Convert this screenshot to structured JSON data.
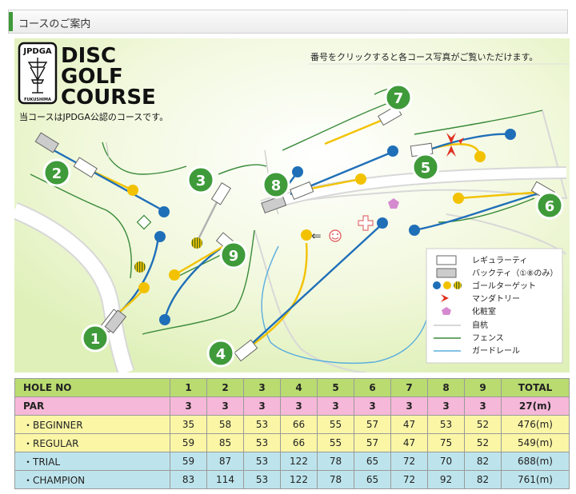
{
  "header": {
    "title": "コースのご案内"
  },
  "map": {
    "logo": {
      "top": "JPDGA",
      "bottom": "FUKUSHIMA",
      "line1": "DISC",
      "line2": "GOLF",
      "line3": "COURSE"
    },
    "note": "当コースはJPDGA公認のコースです。",
    "instruction": "番号をクリックすると各コース写真がご覧いただけます。",
    "holes": [
      "1",
      "2",
      "3",
      "4",
      "5",
      "6",
      "7",
      "8",
      "9"
    ],
    "smiley_arrow": "⇐",
    "legend": {
      "regular_tee": "レギュラーティ",
      "back_tee": "バックティ（①⑧のみ）",
      "goal": "ゴールターゲット",
      "mandatory": "マンダトリー",
      "restroom": "化粧室",
      "pole": "自杭",
      "fence": "フェンス",
      "guardrail": "ガードレール"
    },
    "colors": {
      "regular": "#1f6fb8",
      "goal_yellow": "#f2c200",
      "fence": "#3a8a3a",
      "guardrail": "#5aaede",
      "badge": "#3f9a3a",
      "mandatory": "#e03020",
      "restroom": "#d58ad0"
    }
  },
  "table": {
    "header": [
      "HOLE NO",
      "1",
      "2",
      "3",
      "4",
      "5",
      "6",
      "7",
      "8",
      "9",
      "TOTAL"
    ],
    "rows": [
      {
        "label": "PAR",
        "cells": [
          "3",
          "3",
          "3",
          "3",
          "3",
          "3",
          "3",
          "3",
          "3",
          "27(m)"
        ]
      },
      {
        "label": "・BEGINNER",
        "cells": [
          "35",
          "58",
          "53",
          "66",
          "55",
          "57",
          "47",
          "53",
          "52",
          "476(m)"
        ]
      },
      {
        "label": "・REGULAR",
        "cells": [
          "59",
          "85",
          "53",
          "66",
          "55",
          "57",
          "47",
          "75",
          "52",
          "549(m)"
        ]
      },
      {
        "label": "・TRIAL",
        "cells": [
          "59",
          "87",
          "53",
          "122",
          "78",
          "65",
          "72",
          "70",
          "82",
          "688(m)"
        ]
      },
      {
        "label": "・CHAMPION",
        "cells": [
          "83",
          "114",
          "53",
          "122",
          "78",
          "65",
          "72",
          "92",
          "82",
          "761(m)"
        ]
      }
    ]
  }
}
